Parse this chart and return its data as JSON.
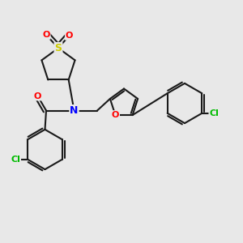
{
  "bg_color": "#e8e8e8",
  "atom_colors": {
    "C": "#1a1a1a",
    "N": "#0000ff",
    "O": "#ff0000",
    "S": "#cccc00",
    "Cl": "#00bb00",
    "H": "#000000"
  },
  "bond_color": "#1a1a1a",
  "bond_width": 1.5,
  "figsize": [
    3.0,
    3.0
  ],
  "dpi": 100
}
